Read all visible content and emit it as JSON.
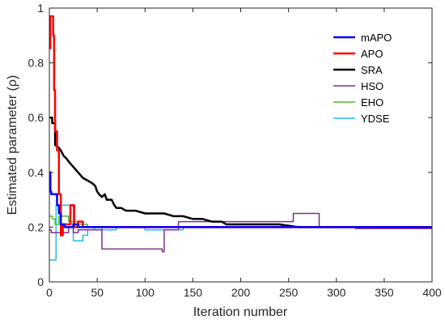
{
  "chart_data": {
    "type": "line",
    "title": "",
    "xlabel": "Iteration number",
    "ylabel": "Estimated parameter (ρ)",
    "xlim": [
      0,
      400
    ],
    "ylim": [
      0,
      1
    ],
    "xticks": [
      "0",
      "50",
      "100",
      "150",
      "200",
      "250",
      "300",
      "350",
      "400"
    ],
    "yticks": [
      "0",
      "0.2",
      "0.4",
      "0.6",
      "0.8",
      "1"
    ],
    "grid": false,
    "legend_position": "top-right",
    "series": [
      {
        "name": "mAPO",
        "color": "#0000ff",
        "width": 2.5,
        "x": [
          0,
          1,
          1,
          2,
          2,
          8,
          8,
          10,
          10,
          12,
          12,
          16,
          16,
          25,
          25,
          30,
          30,
          40,
          40,
          50,
          400
        ],
        "y": [
          0.4,
          0.4,
          0.33,
          0.33,
          0.32,
          0.32,
          0.28,
          0.28,
          0.25,
          0.25,
          0.21,
          0.21,
          0.2,
          0.2,
          0.21,
          0.21,
          0.2,
          0.2,
          0.2,
          0.2,
          0.2
        ]
      },
      {
        "name": "APO",
        "color": "#ff0000",
        "width": 2.5,
        "x": [
          1,
          1,
          4,
          4,
          5,
          5,
          6,
          6,
          8,
          8,
          10,
          10,
          12,
          12,
          14,
          14,
          18,
          18,
          22,
          22,
          26,
          26,
          30,
          30,
          35,
          35,
          40,
          40,
          50,
          50,
          400
        ],
        "y": [
          0.85,
          0.97,
          0.97,
          0.9,
          0.9,
          0.7,
          0.7,
          0.55,
          0.55,
          0.48,
          0.48,
          0.32,
          0.32,
          0.17,
          0.17,
          0.21,
          0.21,
          0.21,
          0.21,
          0.28,
          0.28,
          0.2,
          0.2,
          0.22,
          0.22,
          0.2,
          0.2,
          0.2,
          0.2,
          0.2,
          0.2
        ]
      },
      {
        "name": "SRA",
        "color": "#000000",
        "width": 2.5,
        "x": [
          0,
          3,
          3,
          6,
          6,
          10,
          12,
          15,
          18,
          20,
          25,
          30,
          35,
          40,
          45,
          48,
          50,
          52,
          55,
          58,
          60,
          65,
          68,
          70,
          75,
          80,
          90,
          100,
          110,
          120,
          130,
          140,
          150,
          160,
          170,
          180,
          185,
          200,
          210,
          220,
          240,
          260,
          280,
          300,
          320,
          330,
          340,
          350,
          360,
          380,
          400
        ],
        "y": [
          0.6,
          0.6,
          0.58,
          0.58,
          0.5,
          0.49,
          0.48,
          0.46,
          0.45,
          0.44,
          0.42,
          0.4,
          0.38,
          0.37,
          0.36,
          0.35,
          0.33,
          0.32,
          0.31,
          0.32,
          0.3,
          0.3,
          0.28,
          0.27,
          0.27,
          0.26,
          0.26,
          0.25,
          0.25,
          0.25,
          0.24,
          0.24,
          0.23,
          0.23,
          0.22,
          0.22,
          0.21,
          0.21,
          0.21,
          0.21,
          0.21,
          0.2,
          0.2,
          0.2,
          0.2,
          0.2,
          0.2,
          0.2,
          0.2,
          0.2,
          0.2
        ]
      },
      {
        "name": "HSO",
        "color": "#7e2f8e",
        "width": 1.5,
        "x": [
          0,
          2,
          2,
          20,
          20,
          25,
          25,
          30,
          30,
          55,
          55,
          118,
          118,
          120,
          120,
          135,
          135,
          255,
          255,
          282,
          282,
          290,
          290,
          320,
          320,
          400
        ],
        "y": [
          0.19,
          0.19,
          0.18,
          0.18,
          0.2,
          0.2,
          0.18,
          0.18,
          0.19,
          0.19,
          0.12,
          0.12,
          0.11,
          0.11,
          0.19,
          0.19,
          0.22,
          0.22,
          0.25,
          0.25,
          0.2,
          0.2,
          0.2,
          0.2,
          0.195,
          0.195
        ]
      },
      {
        "name": "EHO",
        "color": "#4dbe2b",
        "width": 1.5,
        "x": [
          0,
          3,
          3,
          6,
          6,
          10,
          10,
          20,
          20,
          30,
          30,
          40,
          40,
          60,
          60,
          400
        ],
        "y": [
          0.24,
          0.24,
          0.23,
          0.23,
          0.21,
          0.21,
          0.24,
          0.24,
          0.22,
          0.22,
          0.21,
          0.21,
          0.2,
          0.2,
          0.2,
          0.2
        ]
      },
      {
        "name": "YDSE",
        "color": "#1fbde8",
        "width": 1.5,
        "x": [
          0,
          7,
          7,
          25,
          25,
          28,
          28,
          35,
          35,
          40,
          40,
          47,
          47,
          55,
          55,
          70,
          70,
          100,
          100,
          140,
          140,
          400
        ],
        "y": [
          0.08,
          0.08,
          0.28,
          0.28,
          0.15,
          0.15,
          0.15,
          0.15,
          0.17,
          0.17,
          0.19,
          0.19,
          0.2,
          0.2,
          0.19,
          0.19,
          0.2,
          0.2,
          0.19,
          0.19,
          0.2,
          0.2
        ]
      }
    ]
  }
}
